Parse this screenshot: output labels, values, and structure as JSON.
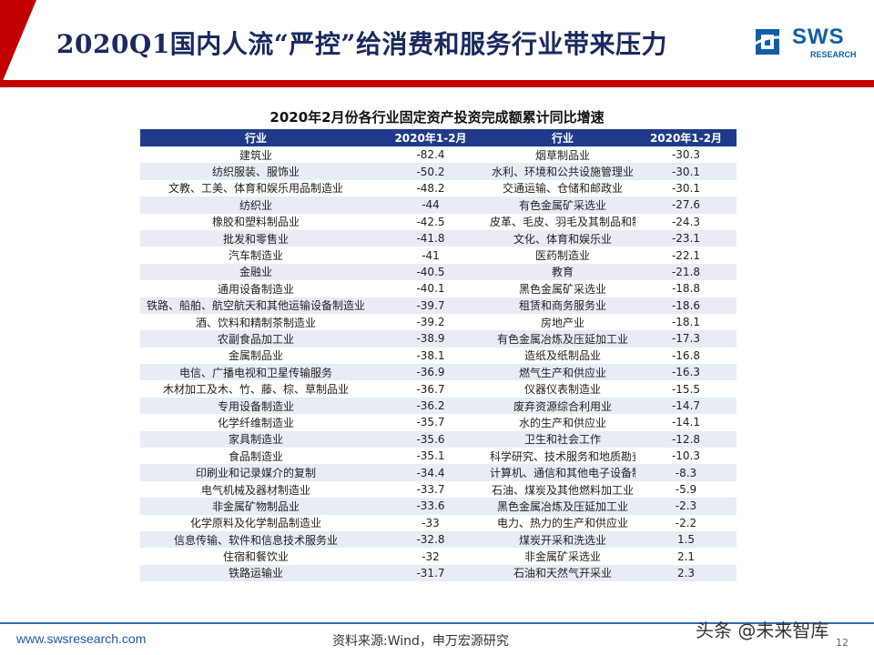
{
  "header": {
    "title": "2020Q1国内人流“严控”给消费和服务行业带来压力",
    "logo_text": "SWS",
    "logo_subtext": "RESEARCH",
    "accent_color": "#c00000",
    "title_color": "#1a2a5e"
  },
  "table": {
    "title": "2020年2月份各行业固定资产投资完成额累计同比增速",
    "headers": [
      "行业",
      "2020年1-2月",
      "行业",
      "2020年1-2月"
    ],
    "header_color": "#1f3a8a",
    "rows": [
      [
        "建筑业",
        "-82.4",
        "烟草制品业",
        "-30.3"
      ],
      [
        "纺织服装、服饰业",
        "-50.2",
        "水利、环境和公共设施管理业",
        "-30.1"
      ],
      [
        "文教、工美、体育和娱乐用品制造业",
        "-48.2",
        "交通运输、仓储和邮政业",
        "-30.1"
      ],
      [
        "纺织业",
        "-44",
        "有色金属矿采选业",
        "-27.6"
      ],
      [
        "橡胶和塑料制品业",
        "-42.5",
        "皮革、毛皮、羽毛及其制品和制鞋业",
        "-24.3"
      ],
      [
        "批发和零售业",
        "-41.8",
        "文化、体育和娱乐业",
        "-23.1"
      ],
      [
        "汽车制造业",
        "-41",
        "医药制造业",
        "-22.1"
      ],
      [
        "金融业",
        "-40.5",
        "教育",
        "-21.8"
      ],
      [
        "通用设备制造业",
        "-40.1",
        "黑色金属矿采选业",
        "-18.8"
      ],
      [
        "铁路、船舶、航空航天和其他运输设备制造业",
        "-39.7",
        "租赁和商务服务业",
        "-18.6"
      ],
      [
        "酒、饮料和精制茶制造业",
        "-39.2",
        "房地产业",
        "-18.1"
      ],
      [
        "农副食品加工业",
        "-38.9",
        "有色金属冶炼及压延加工业",
        "-17.3"
      ],
      [
        "金属制品业",
        "-38.1",
        "造纸及纸制品业",
        "-16.8"
      ],
      [
        "电信、广播电视和卫星传输服务",
        "-36.9",
        "燃气生产和供应业",
        "-16.3"
      ],
      [
        "木材加工及木、竹、藤、棕、草制品业",
        "-36.7",
        "仪器仪表制造业",
        "-15.5"
      ],
      [
        "专用设备制造业",
        "-36.2",
        "废弃资源综合利用业",
        "-14.7"
      ],
      [
        "化学纤维制造业",
        "-35.7",
        "水的生产和供应业",
        "-14.1"
      ],
      [
        "家具制造业",
        "-35.6",
        "卫生和社会工作",
        "-12.8"
      ],
      [
        "食品制造业",
        "-35.1",
        "科学研究、技术服务和地质勘查业",
        "-10.3"
      ],
      [
        "印刷业和记录媒介的复制",
        "-34.4",
        "计算机、通信和其他电子设备制造业",
        "-8.3"
      ],
      [
        "电气机械及器材制造业",
        "-33.7",
        "石油、煤炭及其他燃料加工业",
        "-5.9"
      ],
      [
        "非金属矿物制品业",
        "-33.6",
        "黑色金属冶炼及压延加工业",
        "-2.3"
      ],
      [
        "化学原料及化学制品制造业",
        "-33",
        "电力、热力的生产和供应业",
        "-2.2"
      ],
      [
        "信息传输、软件和信息技术服务业",
        "-32.8",
        "煤炭开采和洗选业",
        "1.5"
      ],
      [
        "住宿和餐饮业",
        "-32",
        "非金属矿采选业",
        "2.1"
      ],
      [
        "铁路运输业",
        "-31.7",
        "石油和天然气开采业",
        "2.3"
      ]
    ]
  },
  "footer": {
    "url": "www.swsresearch.com",
    "source": "资料来源:Wind，申万宏源研究",
    "watermark": "头条 @未来智库",
    "page": "12"
  }
}
